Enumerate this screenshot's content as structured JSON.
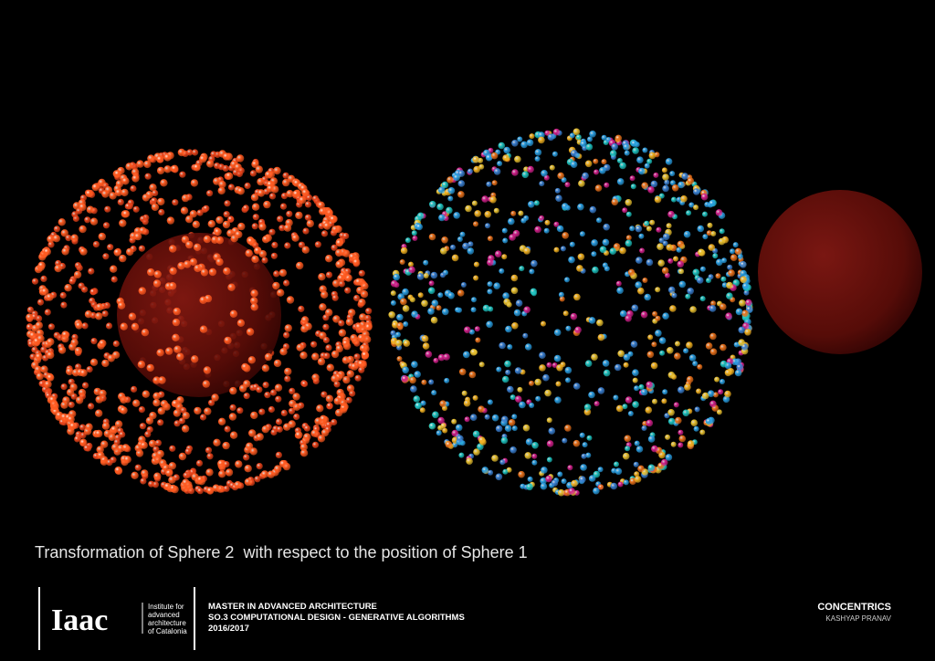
{
  "caption": "Transformation of Sphere 2  with respect to the position of Sphere 1",
  "footer": {
    "logo": "Iaac",
    "institute": [
      "Institute for",
      "advanced",
      "architecture",
      "of Catalonia"
    ],
    "program": [
      "MASTER IN ADVANCED ARCHITECTURE",
      "SO.3 COMPUTATIONAL DESIGN - GENERATIVE ALGORITHMS",
      "2016/2017"
    ],
    "project": "CONCENTRICS",
    "author": "KASHYAP PRANAV"
  }
}
